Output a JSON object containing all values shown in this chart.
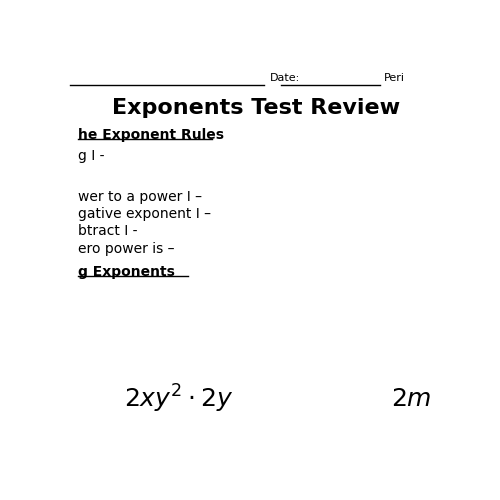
{
  "title": "Exponents Test Review",
  "bg_color": "#ffffff",
  "text_color": "#000000",
  "date_label": "Date:",
  "period_label": "Peri",
  "section1_heading": "he Exponent Rules",
  "rule1": "g I -",
  "rule2": "",
  "rule3": "wer to a power I –",
  "rule4": "gative exponent I –",
  "rule5": "btract I -",
  "rule6": "ero power is –",
  "section2_heading": "g Exponents",
  "math_expr": "$2xy^2 \\cdot 2y$",
  "math_expr2": "$2m$"
}
